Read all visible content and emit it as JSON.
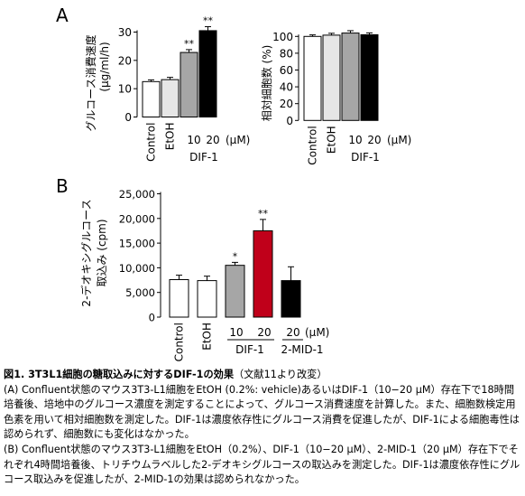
{
  "panels": {
    "a": {
      "label": "A",
      "left_ylabel": "グルコース消費速度",
      "left_yunit": "(μg/ml/h)",
      "right_ylabel": "相対細胞数 (%)",
      "dose_labels": [
        "10",
        "20"
      ],
      "dose_unit": "(μM)",
      "group_label": "DIF-1"
    },
    "b": {
      "label": "B",
      "ylabel": "2-デオキシグルコース",
      "ylabel2": "取込み (cpm)",
      "dose_labels": [
        "10",
        "20",
        "20"
      ],
      "dose_unit": "(μM)",
      "group_labels": [
        "DIF-1",
        "2-MID-1"
      ]
    }
  },
  "caption": {
    "title": "図1. 3T3L1細胞の糖取込みに対するDIF-1の効果",
    "source": "（文献11より改変）",
    "line_a": "(A) Confluent状態のマウス3T3-L1細胞をEtOH (0.2%: vehicle)あるいはDIF-1（10−20 μM）存在下で18時間培養後、培地中のグルコース濃度を測定することによって、グルコース消費速度を計算した。また、細胞数検定用色素を用いて相対細胞数を測定した。DIF-1は濃度依存性にグルコース消費を促進したが、DIF-1による細胞毒性は認められず、細胞数にも変化はなかった。",
    "line_b": "(B) Confluent状態のマウス3T3-L1細胞をEtOH（0.2%）、DIF-1（10−20 μM）、2-MID-1（20 μM）存在下でそれぞれ4時間培養後、トリチウムラベルした2-デオキシグルコースの取込みを測定した。DIF-1は濃度依存性にグルコース取込みを促進したが、2-MID-1の効果は認められなかった。"
  },
  "chart_data": [
    {
      "type": "bar",
      "categories": [
        "Control",
        "EtOH",
        "10",
        "20"
      ],
      "values": [
        12.5,
        13.2,
        22.8,
        30.5
      ],
      "errors": [
        0.6,
        0.8,
        1.0,
        1.4
      ],
      "significance": [
        "",
        "",
        "**",
        "**"
      ],
      "fills": [
        "#ffffff",
        "#e6e6e6",
        "#a6a6a6",
        "#000000"
      ],
      "ylabel": "グルコース消費速度 (μg/ml/h)",
      "ylim": [
        0,
        30
      ],
      "yticks": [
        0,
        10,
        20,
        30
      ],
      "ytick_labels": [
        "0",
        "10",
        "20",
        "30"
      ]
    },
    {
      "type": "bar",
      "categories": [
        "Control",
        "EtOH",
        "10",
        "20"
      ],
      "values": [
        100,
        101.5,
        104,
        102
      ],
      "errors": [
        1.8,
        2.2,
        2.8,
        2.2
      ],
      "significance": [
        "",
        "",
        "",
        ""
      ],
      "fills": [
        "#ffffff",
        "#e6e6e6",
        "#a6a6a6",
        "#000000"
      ],
      "ylabel": "相対細胞数 (%)",
      "ylim": [
        0,
        100
      ],
      "yticks": [
        0,
        20,
        40,
        60,
        80,
        100
      ],
      "ytick_labels": [
        "0",
        "20",
        "40",
        "60",
        "80",
        "100"
      ]
    },
    {
      "type": "bar",
      "categories": [
        "Control",
        "EtOH",
        "10",
        "20",
        "20"
      ],
      "values": [
        7600,
        7400,
        10500,
        17500,
        7400
      ],
      "errors": [
        900,
        900,
        600,
        2300,
        2800
      ],
      "significance": [
        "",
        "",
        "*",
        "**",
        ""
      ],
      "fills": [
        "#ffffff",
        "#ffffff",
        "#a6a6a6",
        "#c0001a",
        "#000000"
      ],
      "ylabel": "2-デオキシグルコース取込み (cpm)",
      "ylim": [
        0,
        25000
      ],
      "yticks": [
        0,
        5000,
        10000,
        15000,
        20000,
        25000
      ],
      "ytick_labels": [
        "0",
        "5,000",
        "10,000",
        "15,000",
        "20,000",
        "25,000"
      ]
    }
  ]
}
